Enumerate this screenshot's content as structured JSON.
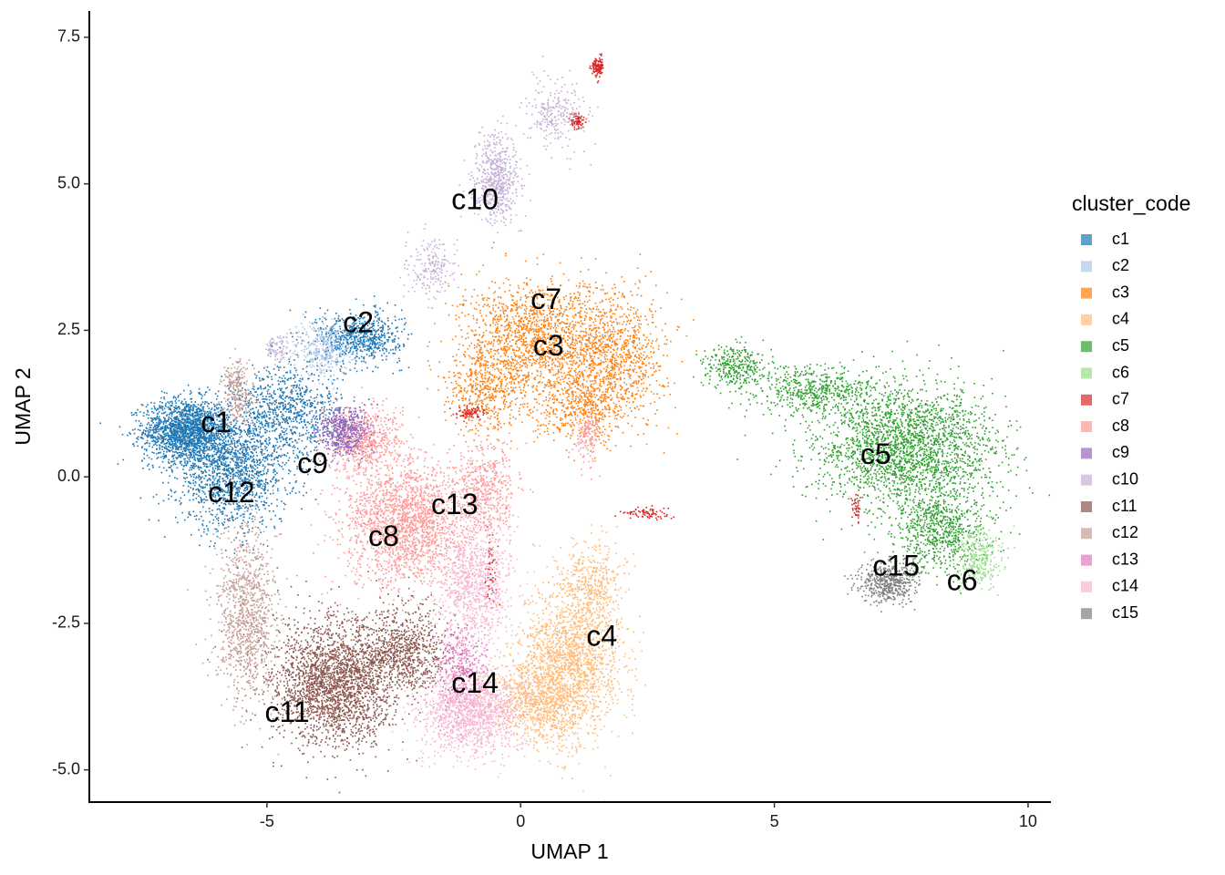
{
  "chart_data": {
    "type": "scatter",
    "xlabel": "UMAP 1",
    "ylabel": "UMAP 2",
    "xlim": [
      -8.5,
      10.45
    ],
    "ylim": [
      -5.55,
      7.95
    ],
    "xticks": [
      -5,
      0,
      5,
      10
    ],
    "xtick_labels": [
      "-5",
      "0",
      "5",
      "10"
    ],
    "yticks": [
      -5,
      -2.5,
      0,
      2.5,
      5,
      7.5
    ],
    "ytick_labels": [
      "-5.0",
      "-2.5",
      "0.0",
      "2.5",
      "5.0",
      "7.5"
    ],
    "grid": false,
    "legend_title": "cluster_code",
    "legend_position": "right",
    "series": [
      {
        "name": "c1",
        "color": "#1f77b4",
        "label_pos": [
          -6.0,
          0.9
        ],
        "blobs": [
          [
            -6.6,
            0.8,
            0.7,
            0.45,
            1800
          ],
          [
            -5.7,
            0.1,
            0.9,
            0.8,
            1500
          ],
          [
            -4.6,
            1.1,
            0.9,
            0.7,
            900
          ],
          [
            -3.2,
            2.4,
            0.7,
            0.35,
            700
          ]
        ]
      },
      {
        "name": "c2",
        "color": "#aec7e8",
        "label_pos": [
          -3.2,
          2.6
        ],
        "blobs": [
          [
            -3.9,
            2.2,
            0.5,
            0.4,
            350
          ]
        ]
      },
      {
        "name": "c3",
        "color": "#ff7f0e",
        "label_pos": [
          0.55,
          2.2
        ],
        "blobs": [
          [
            0.3,
            2.4,
            1.2,
            0.8,
            1500
          ],
          [
            1.9,
            2.1,
            0.8,
            0.9,
            900
          ],
          [
            -0.7,
            1.5,
            0.7,
            0.6,
            500
          ],
          [
            1.2,
            1.2,
            0.8,
            0.5,
            500
          ]
        ]
      },
      {
        "name": "c4",
        "color": "#ffbb78",
        "label_pos": [
          1.6,
          -2.75
        ],
        "blobs": [
          [
            1.0,
            -3.1,
            0.8,
            1.1,
            1700
          ],
          [
            0.3,
            -3.8,
            0.8,
            0.6,
            900
          ],
          [
            1.4,
            -1.8,
            0.5,
            0.6,
            400
          ]
        ]
      },
      {
        "name": "c5",
        "color": "#2ca02c",
        "label_pos": [
          7.0,
          0.35
        ],
        "blobs": [
          [
            7.6,
            0.5,
            1.5,
            0.9,
            2400
          ],
          [
            5.7,
            1.5,
            1.0,
            0.35,
            500
          ],
          [
            4.2,
            1.9,
            0.5,
            0.3,
            300
          ],
          [
            8.3,
            -0.9,
            0.8,
            0.6,
            700
          ]
        ]
      },
      {
        "name": "c6",
        "color": "#98df8a",
        "label_pos": [
          8.7,
          -1.8
        ],
        "blobs": [
          [
            9.0,
            -1.4,
            0.35,
            0.4,
            300
          ]
        ]
      },
      {
        "name": "c7",
        "color": "#d62728",
        "label_pos": [
          0.5,
          3.0
        ],
        "blobs": [
          [
            1.5,
            7.0,
            0.1,
            0.15,
            120
          ],
          [
            1.1,
            6.1,
            0.12,
            0.12,
            80
          ],
          [
            -1.0,
            1.1,
            0.3,
            0.1,
            80
          ],
          [
            2.5,
            -0.6,
            0.4,
            0.08,
            80
          ],
          [
            -0.6,
            -1.6,
            0.1,
            0.5,
            60
          ],
          [
            6.6,
            -0.5,
            0.08,
            0.2,
            40
          ]
        ]
      },
      {
        "name": "c8",
        "color": "#ff9896",
        "label_pos": [
          -2.7,
          -1.05
        ],
        "blobs": [
          [
            -2.3,
            -0.8,
            1.0,
            0.9,
            2000
          ],
          [
            -3.1,
            0.6,
            0.6,
            0.5,
            600
          ],
          [
            -0.7,
            -0.2,
            0.5,
            0.7,
            500
          ],
          [
            1.3,
            0.7,
            0.2,
            0.4,
            150
          ]
        ]
      },
      {
        "name": "c9",
        "color": "#9467bd",
        "label_pos": [
          -4.1,
          0.2
        ],
        "blobs": [
          [
            -3.5,
            0.8,
            0.4,
            0.35,
            500
          ]
        ]
      },
      {
        "name": "c10",
        "color": "#c5b0d5",
        "label_pos": [
          -0.9,
          4.7
        ],
        "blobs": [
          [
            -0.5,
            5.1,
            0.4,
            0.6,
            600
          ],
          [
            0.7,
            6.2,
            0.5,
            0.5,
            250
          ],
          [
            -1.8,
            3.6,
            0.4,
            0.4,
            200
          ],
          [
            -4.8,
            2.2,
            0.2,
            0.2,
            80
          ]
        ]
      },
      {
        "name": "c11",
        "color": "#8c564b",
        "label_pos": [
          -4.6,
          -4.05
        ],
        "blobs": [
          [
            -3.7,
            -3.5,
            1.0,
            0.9,
            2400
          ],
          [
            -2.3,
            -3.0,
            0.7,
            0.6,
            800
          ]
        ]
      },
      {
        "name": "c12",
        "color": "#c49c94",
        "label_pos": [
          -5.7,
          -0.3
        ],
        "blobs": [
          [
            -5.4,
            -2.4,
            0.5,
            1.2,
            1000
          ],
          [
            -5.6,
            1.5,
            0.25,
            0.5,
            250
          ]
        ]
      },
      {
        "name": "c13",
        "color": "#e377c2",
        "label_pos": [
          -1.3,
          -0.5
        ],
        "blobs": [
          [
            -1.2,
            -3.3,
            0.5,
            0.7,
            400
          ]
        ]
      },
      {
        "name": "c14",
        "color": "#f7b6d2",
        "label_pos": [
          -0.9,
          -3.55
        ],
        "blobs": [
          [
            -1.0,
            -4.0,
            0.8,
            0.6,
            1300
          ],
          [
            -0.9,
            -1.8,
            0.6,
            0.9,
            900
          ]
        ]
      },
      {
        "name": "c15",
        "color": "#7f7f7f",
        "label_pos": [
          7.4,
          -1.55
        ],
        "blobs": [
          [
            7.2,
            -1.8,
            0.5,
            0.3,
            500
          ]
        ]
      }
    ]
  }
}
